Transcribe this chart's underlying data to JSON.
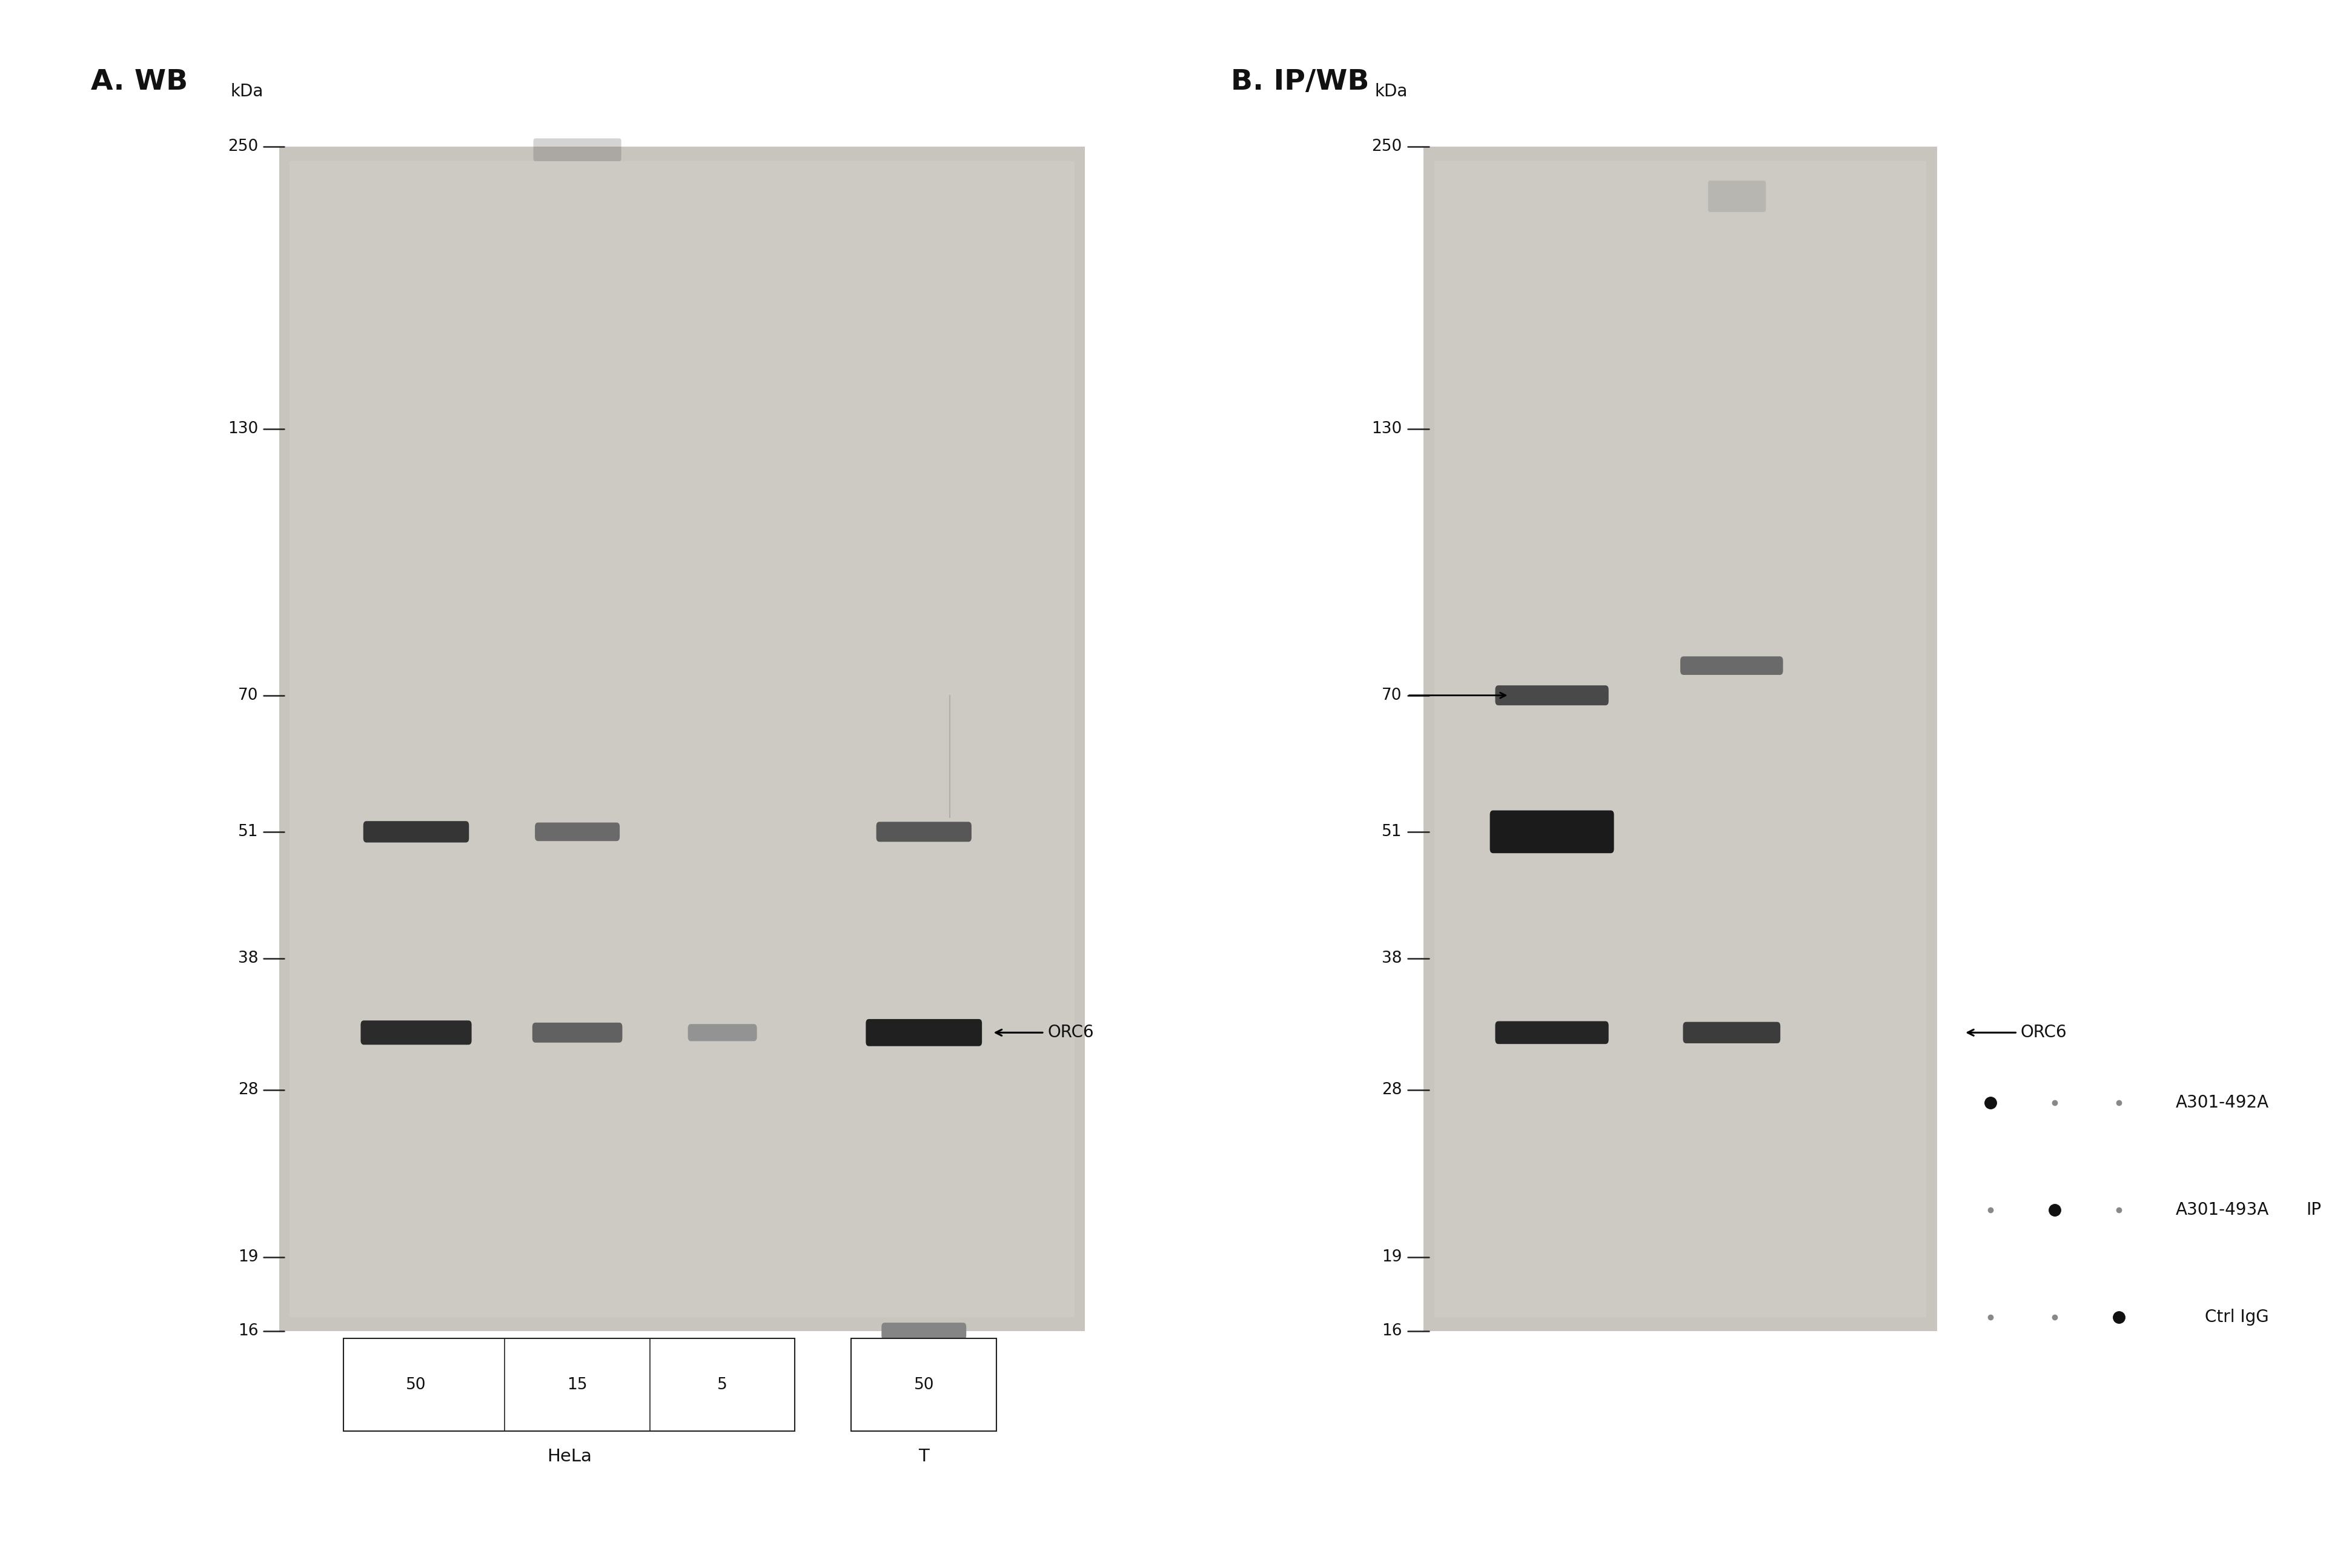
{
  "panel_A_title": "A. WB",
  "panel_B_title": "B. IP/WB",
  "kda_label": "kDa",
  "mw_markers": [
    250,
    130,
    70,
    51,
    38,
    28,
    19,
    16
  ],
  "protein_label": "ORC6",
  "bg_color": "#c8c4bc",
  "blot_bg": "#c8c4bc",
  "band_dark": "#111111",
  "band_mid": "#555555",
  "band_light": "#999999",
  "text_color": "#111111",
  "white": "#ffffff",
  "panel_A_lane_labels": [
    "50",
    "15",
    "5",
    "50"
  ],
  "panel_A_group_labels": [
    "HeLa",
    "T"
  ],
  "panel_B_legend_rows": [
    {
      "label": "A301-492A",
      "dots": [
        2,
        1,
        1
      ]
    },
    {
      "label": "A301-493A",
      "dots": [
        1,
        2,
        1
      ]
    },
    {
      "label": "Ctrl IgG",
      "dots": [
        1,
        1,
        2
      ]
    }
  ],
  "panel_B_ip_label": "IP",
  "dot_big_size": 120,
  "dot_small_size": 40,
  "figure_bg": "#ffffff"
}
